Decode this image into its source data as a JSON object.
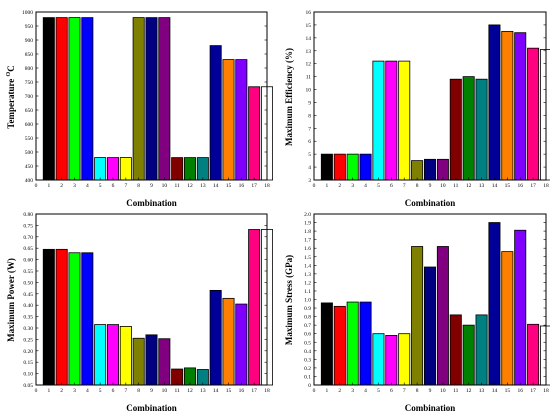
{
  "chart_data": [
    {
      "type": "bar",
      "xlabel": "Combination",
      "ylabel": "Temperature ",
      "ylabel_unit": "C",
      "ylabel_unit_sup": "O",
      "categories": [
        1,
        2,
        3,
        4,
        5,
        6,
        7,
        8,
        9,
        10,
        11,
        12,
        13,
        14,
        15,
        16,
        17,
        18
      ],
      "xticks": [
        0,
        1,
        2,
        3,
        4,
        5,
        6,
        7,
        8,
        9,
        10,
        11,
        12,
        13,
        14,
        15,
        16,
        17,
        18
      ],
      "values": [
        980,
        980,
        980,
        980,
        480,
        480,
        480,
        980,
        980,
        980,
        480,
        480,
        480,
        880,
        830,
        830,
        733,
        733
      ],
      "ylim": [
        400,
        1000
      ],
      "yticks": [
        "400",
        "450",
        "500",
        "550",
        "600",
        "650",
        "700",
        "750",
        "800",
        "850",
        "900",
        "950",
        "1000"
      ]
    },
    {
      "type": "bar",
      "xlabel": "Combination",
      "ylabel": "Maximum Efficiency (%)",
      "categories": [
        1,
        2,
        3,
        4,
        5,
        6,
        7,
        8,
        9,
        10,
        11,
        12,
        13,
        14,
        15,
        16,
        17,
        18
      ],
      "xticks": [
        0,
        1,
        2,
        3,
        4,
        5,
        6,
        7,
        8,
        9,
        10,
        11,
        12,
        13,
        14,
        15,
        16,
        17,
        18
      ],
      "values": [
        5.0,
        5.0,
        5.0,
        5.0,
        12.2,
        12.2,
        12.2,
        4.5,
        4.6,
        4.6,
        10.8,
        11.0,
        10.8,
        15.0,
        14.5,
        14.4,
        13.2,
        13.1
      ],
      "ylim": [
        3,
        16
      ],
      "yticks": [
        "3",
        "4",
        "5",
        "6",
        "7",
        "8",
        "9",
        "10",
        "11",
        "12",
        "13",
        "14",
        "15",
        "16"
      ]
    },
    {
      "type": "bar",
      "xlabel": "Combination",
      "ylabel": "Maximum Power (W)",
      "categories": [
        1,
        2,
        3,
        4,
        5,
        6,
        7,
        8,
        9,
        10,
        11,
        12,
        13,
        14,
        15,
        16,
        17,
        18
      ],
      "xticks": [
        0,
        1,
        2,
        3,
        4,
        5,
        6,
        7,
        8,
        9,
        10,
        11,
        12,
        13,
        14,
        15,
        16,
        17,
        18
      ],
      "values": [
        0.645,
        0.645,
        0.63,
        0.63,
        0.315,
        0.315,
        0.307,
        0.255,
        0.27,
        0.253,
        0.12,
        0.125,
        0.118,
        0.465,
        0.43,
        0.405,
        0.732,
        0.732
      ],
      "ylim": [
        0.05,
        0.8
      ],
      "yticks": [
        "0.05",
        "0.10",
        "0.15",
        "0.20",
        "0.25",
        "0.30",
        "0.35",
        "0.40",
        "0.45",
        "0.50",
        "0.55",
        "0.60",
        "0.65",
        "0.70",
        "0.75",
        "0.80"
      ]
    },
    {
      "type": "bar",
      "xlabel": "Combination",
      "ylabel": "Maximum Stress (GPa)",
      "categories": [
        1,
        2,
        3,
        4,
        5,
        6,
        7,
        8,
        9,
        10,
        11,
        12,
        13,
        14,
        15,
        16,
        17,
        18
      ],
      "xticks": [
        0,
        1,
        2,
        3,
        4,
        5,
        6,
        7,
        8,
        9,
        10,
        11,
        12,
        13,
        14,
        15,
        16,
        17,
        18
      ],
      "values": [
        0.96,
        0.92,
        0.97,
        0.97,
        0.6,
        0.58,
        0.6,
        1.62,
        1.38,
        1.62,
        0.82,
        0.7,
        0.82,
        1.9,
        1.56,
        1.81,
        0.71,
        0.69
      ],
      "ylim": [
        0,
        2.0
      ],
      "yticks": [
        "0",
        "0.1",
        "0.2",
        "0.3",
        "0.4",
        "0.5",
        "0.6",
        "0.7",
        "0.8",
        "0.9",
        "1.0",
        "1.1",
        "1.2",
        "1.3",
        "1.4",
        "1.5",
        "1.6",
        "1.7",
        "1.8",
        "1.9",
        "2.0"
      ]
    }
  ],
  "bar_colors": [
    "#000000",
    "#ff0000",
    "#00ff00",
    "#0000ff",
    "#00ffff",
    "#ff00ff",
    "#ffff00",
    "#808000",
    "#000080",
    "#800080",
    "#800000",
    "#008000",
    "#008080",
    "#000099",
    "#ff8000",
    "#8000ff",
    "#ff0080",
    "#ffffff"
  ]
}
